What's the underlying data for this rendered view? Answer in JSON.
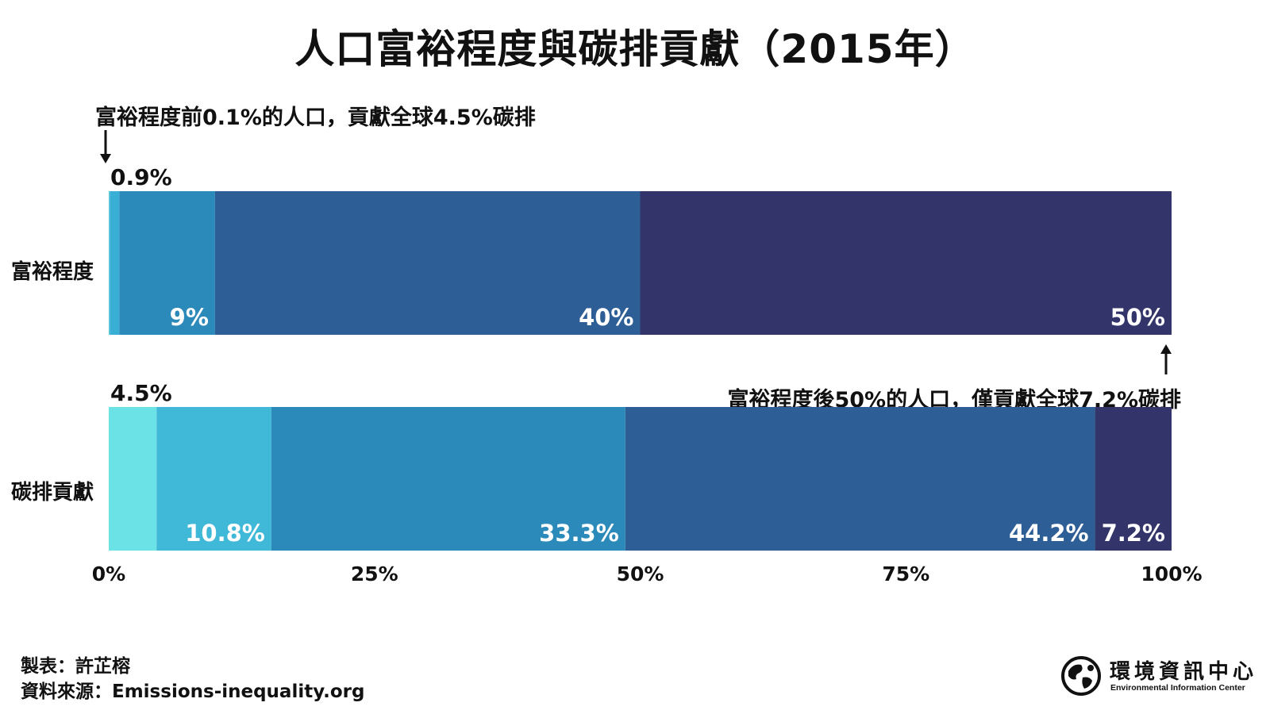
{
  "title": "人口富裕程度與碳排貢獻（2015年）",
  "annotations": {
    "top": "富裕程度前0.1%的人口，貢獻全球4.5%碳排",
    "bottom": "富裕程度後50%的人口，僅貢獻全球7.2%碳排"
  },
  "chart_data": {
    "type": "bar",
    "stacked": true,
    "orientation": "horizontal",
    "xlim": [
      0,
      100
    ],
    "x_ticks": [
      "0%",
      "25%",
      "50%",
      "75%",
      "100%"
    ],
    "grid": false,
    "legend": "none",
    "rows": [
      {
        "label": "富裕程度",
        "segments": [
          {
            "value": 0.1,
            "label": "",
            "color": "#5cc7df"
          },
          {
            "value": 0.9,
            "label": "0.9%",
            "color": "#3aafd5"
          },
          {
            "value": 9,
            "label": "9%",
            "color": "#2b8ab9"
          },
          {
            "value": 40,
            "label": "40%",
            "color": "#2e5e96"
          },
          {
            "value": 50,
            "label": "50%",
            "color": "#32346a"
          }
        ]
      },
      {
        "label": "碳排貢獻",
        "segments": [
          {
            "value": 4.5,
            "label": "4.5%",
            "color": "#6be3e6"
          },
          {
            "value": 10.8,
            "label": "10.8%",
            "color": "#40b8d8"
          },
          {
            "value": 33.3,
            "label": "33.3%",
            "color": "#2b8ab9"
          },
          {
            "value": 44.2,
            "label": "44.2%",
            "color": "#2e5e96"
          },
          {
            "value": 7.2,
            "label": "7.2%",
            "color": "#32346a"
          }
        ]
      }
    ]
  },
  "footer": {
    "credit": "製表：許芷榕",
    "source": "資料來源：Emissions-inequality.org"
  },
  "logo": {
    "name_cn": "環境資訊中心",
    "name_en": "Environmental Information Center"
  }
}
